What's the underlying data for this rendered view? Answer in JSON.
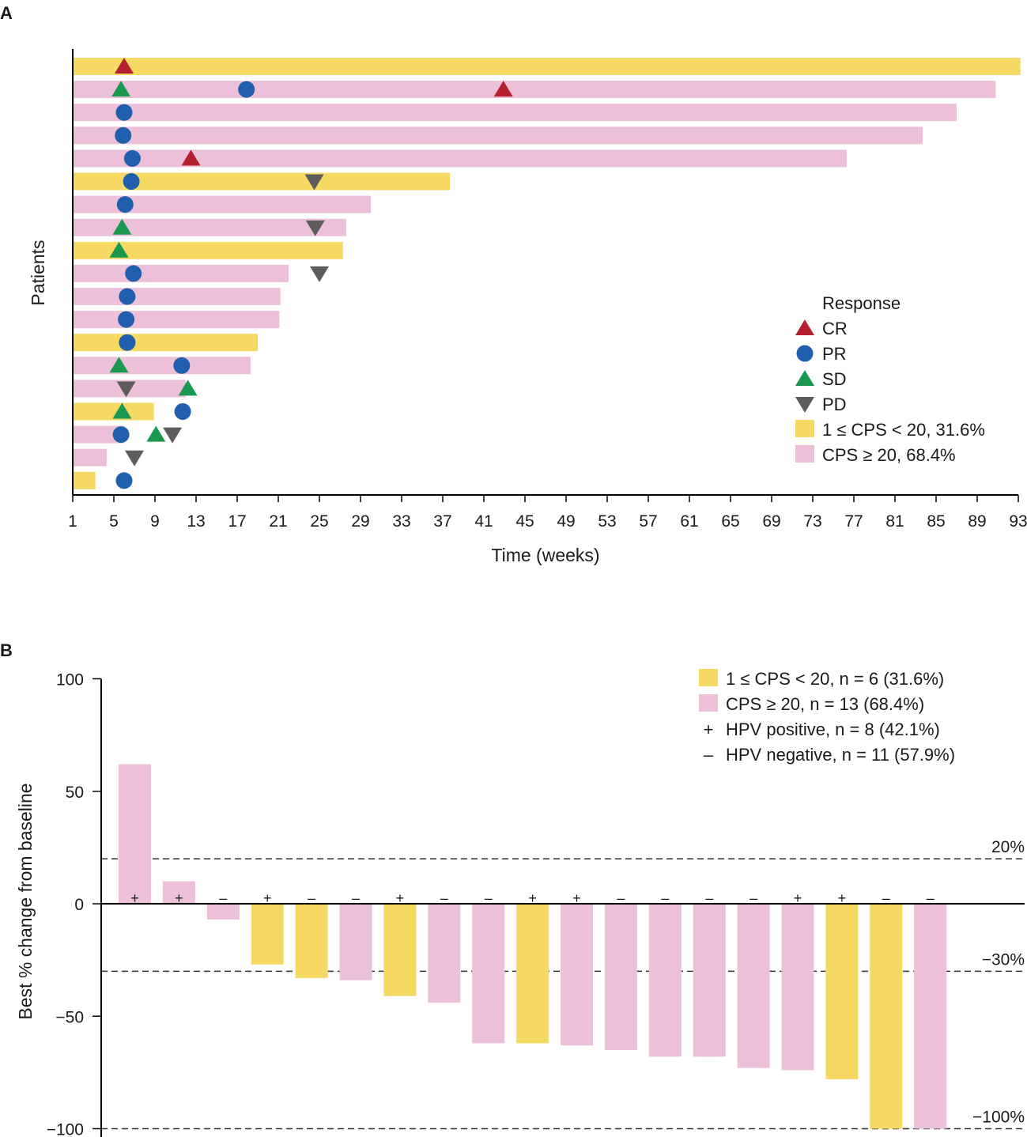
{
  "chart_data": [
    {
      "panel": "A",
      "type": "swimmer",
      "xlabel": "Time (weeks)",
      "ylabel": "Patients",
      "xlim": [
        1,
        93
      ],
      "xticks": [
        1,
        5,
        9,
        13,
        17,
        21,
        25,
        29,
        33,
        37,
        41,
        45,
        49,
        53,
        57,
        61,
        65,
        69,
        73,
        77,
        81,
        85,
        89,
        93
      ],
      "legend_title": "Response",
      "legend_items": [
        {
          "key": "CR",
          "label": "CR"
        },
        {
          "key": "PR",
          "label": "PR"
        },
        {
          "key": "SD",
          "label": "SD"
        },
        {
          "key": "PD",
          "label": "PD"
        },
        {
          "key": "low",
          "label": "1 ≤ CPS < 20, 31.6%"
        },
        {
          "key": "high",
          "label": "CPS ≥ 20, 68.4%"
        }
      ],
      "colors": {
        "low": "#f5d963",
        "high": "#ecc0d8",
        "CR": "#b5202e",
        "PR": "#1f5fad",
        "SD": "#1a9850",
        "PD": "#5d5d5d"
      },
      "patients": [
        {
          "end": 93.2,
          "group": "low",
          "events": [
            {
              "t": 6.0,
              "type": "CR"
            }
          ]
        },
        {
          "end": 90.8,
          "group": "high",
          "events": [
            {
              "t": 5.7,
              "type": "SD"
            },
            {
              "t": 17.9,
              "type": "PR"
            },
            {
              "t": 42.9,
              "type": "CR"
            }
          ]
        },
        {
          "end": 87.0,
          "group": "high",
          "events": [
            {
              "t": 6.0,
              "type": "PR"
            }
          ]
        },
        {
          "end": 83.7,
          "group": "high",
          "events": [
            {
              "t": 5.9,
              "type": "PR"
            }
          ]
        },
        {
          "end": 76.3,
          "group": "high",
          "events": [
            {
              "t": 6.8,
              "type": "PR"
            },
            {
              "t": 12.5,
              "type": "CR"
            }
          ]
        },
        {
          "end": 37.7,
          "group": "low",
          "events": [
            {
              "t": 6.7,
              "type": "PR"
            },
            {
              "t": 24.5,
              "type": "PD"
            }
          ]
        },
        {
          "end": 30.0,
          "group": "high",
          "events": [
            {
              "t": 6.1,
              "type": "PR"
            }
          ]
        },
        {
          "end": 27.6,
          "group": "high",
          "events": [
            {
              "t": 5.8,
              "type": "SD"
            },
            {
              "t": 24.6,
              "type": "PD"
            }
          ]
        },
        {
          "end": 27.3,
          "group": "low",
          "events": [
            {
              "t": 5.5,
              "type": "SD"
            }
          ]
        },
        {
          "end": 22.0,
          "group": "high",
          "events": [
            {
              "t": 6.9,
              "type": "PR"
            },
            {
              "t": 25.0,
              "type": "PD"
            }
          ]
        },
        {
          "end": 21.2,
          "group": "high",
          "events": [
            {
              "t": 6.3,
              "type": "PR"
            }
          ]
        },
        {
          "end": 21.1,
          "group": "high",
          "events": [
            {
              "t": 6.2,
              "type": "PR"
            }
          ]
        },
        {
          "end": 19.0,
          "group": "low",
          "events": [
            {
              "t": 6.3,
              "type": "PR"
            }
          ]
        },
        {
          "end": 18.3,
          "group": "high",
          "events": [
            {
              "t": 5.5,
              "type": "SD"
            },
            {
              "t": 11.6,
              "type": "PR"
            }
          ]
        },
        {
          "end": 12.0,
          "group": "high",
          "events": [
            {
              "t": 6.2,
              "type": "PD"
            },
            {
              "t": 12.2,
              "type": "SD"
            }
          ]
        },
        {
          "end": 8.9,
          "group": "low",
          "events": [
            {
              "t": 5.8,
              "type": "SD"
            },
            {
              "t": 11.7,
              "type": "PR"
            }
          ]
        },
        {
          "end": 6.0,
          "group": "high",
          "events": [
            {
              "t": 5.7,
              "type": "PR"
            },
            {
              "t": 9.1,
              "type": "SD"
            },
            {
              "t": 10.7,
              "type": "PD"
            }
          ]
        },
        {
          "end": 4.3,
          "group": "high",
          "events": [
            {
              "t": 7.0,
              "type": "PD"
            }
          ]
        },
        {
          "end": 3.2,
          "group": "low",
          "events": [
            {
              "t": 6.0,
              "type": "PR"
            }
          ]
        }
      ]
    },
    {
      "panel": "B",
      "type": "waterfall",
      "ylabel": "Best % change from baseline",
      "ylim": [
        -100,
        100
      ],
      "yticks": [
        100,
        50,
        0,
        -50,
        -100
      ],
      "ytick_labels": [
        "100",
        "50",
        "0",
        "−50",
        "−100"
      ],
      "reference_lines": [
        {
          "value": 20,
          "label": "20%"
        },
        {
          "value": -30,
          "label": "−30%"
        },
        {
          "value": -100,
          "label": "−100%"
        }
      ],
      "legend_items": [
        {
          "key": "low",
          "label": "1 ≤ CPS < 20, n = 6 (31.6%)"
        },
        {
          "key": "high",
          "label": "CPS ≥ 20, n = 13 (68.4%)"
        },
        {
          "key": "hpv_pos",
          "symbol": "+",
          "label": "HPV positive, n = 8 (42.1%)"
        },
        {
          "key": "hpv_neg",
          "symbol": "–",
          "label": "HPV negative, n = 11 (57.9%)"
        }
      ],
      "colors": {
        "low": "#f5d963",
        "high": "#ecc0d8"
      },
      "series": [
        {
          "value": 62,
          "group": "high",
          "hpv": "+"
        },
        {
          "value": 10,
          "group": "high",
          "hpv": "+"
        },
        {
          "value": -7,
          "group": "high",
          "hpv": "–"
        },
        {
          "value": -27,
          "group": "low",
          "hpv": "+"
        },
        {
          "value": -33,
          "group": "low",
          "hpv": "–"
        },
        {
          "value": -34,
          "group": "high",
          "hpv": "–"
        },
        {
          "value": -41,
          "group": "low",
          "hpv": "+"
        },
        {
          "value": -44,
          "group": "high",
          "hpv": "–"
        },
        {
          "value": -62,
          "group": "high",
          "hpv": "–"
        },
        {
          "value": -62,
          "group": "low",
          "hpv": "+"
        },
        {
          "value": -63,
          "group": "high",
          "hpv": "+"
        },
        {
          "value": -65,
          "group": "high",
          "hpv": "–"
        },
        {
          "value": -68,
          "group": "high",
          "hpv": "–"
        },
        {
          "value": -68,
          "group": "high",
          "hpv": "–"
        },
        {
          "value": -73,
          "group": "high",
          "hpv": "–"
        },
        {
          "value": -74,
          "group": "high",
          "hpv": "+"
        },
        {
          "value": -78,
          "group": "low",
          "hpv": "+"
        },
        {
          "value": -100,
          "group": "low",
          "hpv": "–"
        },
        {
          "value": -100,
          "group": "high",
          "hpv": "–"
        }
      ]
    }
  ]
}
